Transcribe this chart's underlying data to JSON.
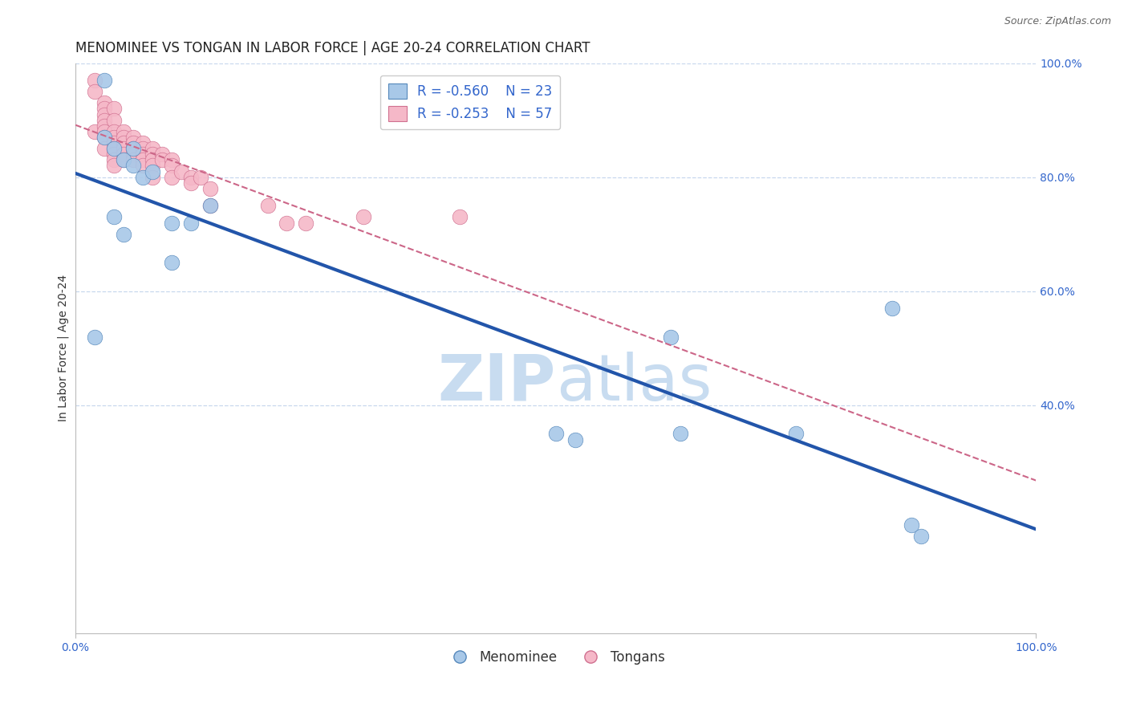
{
  "title": "MENOMINEE VS TONGAN IN LABOR FORCE | AGE 20-24 CORRELATION CHART",
  "source": "Source: ZipAtlas.com",
  "ylabel": "In Labor Force | Age 20-24",
  "xlim": [
    0.0,
    1.0
  ],
  "ylim": [
    0.0,
    1.0
  ],
  "y_tick_positions_right": [
    0.4,
    0.6,
    0.8,
    1.0
  ],
  "legend_r_blue": "-0.560",
  "legend_n_blue": "23",
  "legend_r_pink": "-0.253",
  "legend_n_pink": "57",
  "menominee_x": [
    0.02,
    0.03,
    0.03,
    0.04,
    0.04,
    0.05,
    0.05,
    0.06,
    0.06,
    0.07,
    0.08,
    0.1,
    0.1,
    0.12,
    0.14,
    0.5,
    0.52,
    0.62,
    0.63,
    0.75,
    0.85,
    0.87,
    0.88
  ],
  "menominee_y": [
    0.52,
    0.97,
    0.87,
    0.85,
    0.73,
    0.83,
    0.7,
    0.85,
    0.82,
    0.8,
    0.81,
    0.72,
    0.65,
    0.72,
    0.75,
    0.35,
    0.34,
    0.52,
    0.35,
    0.35,
    0.57,
    0.19,
    0.17
  ],
  "tongan_x": [
    0.02,
    0.02,
    0.02,
    0.03,
    0.03,
    0.03,
    0.03,
    0.03,
    0.03,
    0.03,
    0.03,
    0.04,
    0.04,
    0.04,
    0.04,
    0.04,
    0.04,
    0.04,
    0.04,
    0.04,
    0.05,
    0.05,
    0.05,
    0.05,
    0.05,
    0.05,
    0.06,
    0.06,
    0.06,
    0.06,
    0.06,
    0.07,
    0.07,
    0.07,
    0.07,
    0.07,
    0.08,
    0.08,
    0.08,
    0.08,
    0.08,
    0.09,
    0.09,
    0.1,
    0.1,
    0.1,
    0.11,
    0.12,
    0.12,
    0.13,
    0.14,
    0.14,
    0.2,
    0.22,
    0.24,
    0.3,
    0.4
  ],
  "tongan_y": [
    0.97,
    0.95,
    0.88,
    0.93,
    0.92,
    0.91,
    0.9,
    0.89,
    0.88,
    0.87,
    0.85,
    0.92,
    0.9,
    0.88,
    0.87,
    0.86,
    0.85,
    0.84,
    0.83,
    0.82,
    0.88,
    0.87,
    0.86,
    0.85,
    0.84,
    0.83,
    0.87,
    0.86,
    0.85,
    0.84,
    0.83,
    0.86,
    0.85,
    0.84,
    0.83,
    0.82,
    0.85,
    0.84,
    0.83,
    0.82,
    0.8,
    0.84,
    0.83,
    0.83,
    0.82,
    0.8,
    0.81,
    0.8,
    0.79,
    0.8,
    0.78,
    0.75,
    0.75,
    0.72,
    0.72,
    0.73,
    0.73
  ],
  "blue_scatter_color": "#A8C8E8",
  "blue_scatter_edge": "#5588BB",
  "pink_scatter_color": "#F5B8C8",
  "pink_scatter_edge": "#D07090",
  "blue_line_color": "#2255AA",
  "pink_line_color": "#CC6688",
  "background_color": "#FFFFFF",
  "grid_color": "#C8D8EE",
  "watermark_color": "#C8DCF0",
  "title_fontsize": 12,
  "axis_label_fontsize": 10,
  "tick_fontsize": 10,
  "source_fontsize": 9,
  "legend_fontsize": 12
}
